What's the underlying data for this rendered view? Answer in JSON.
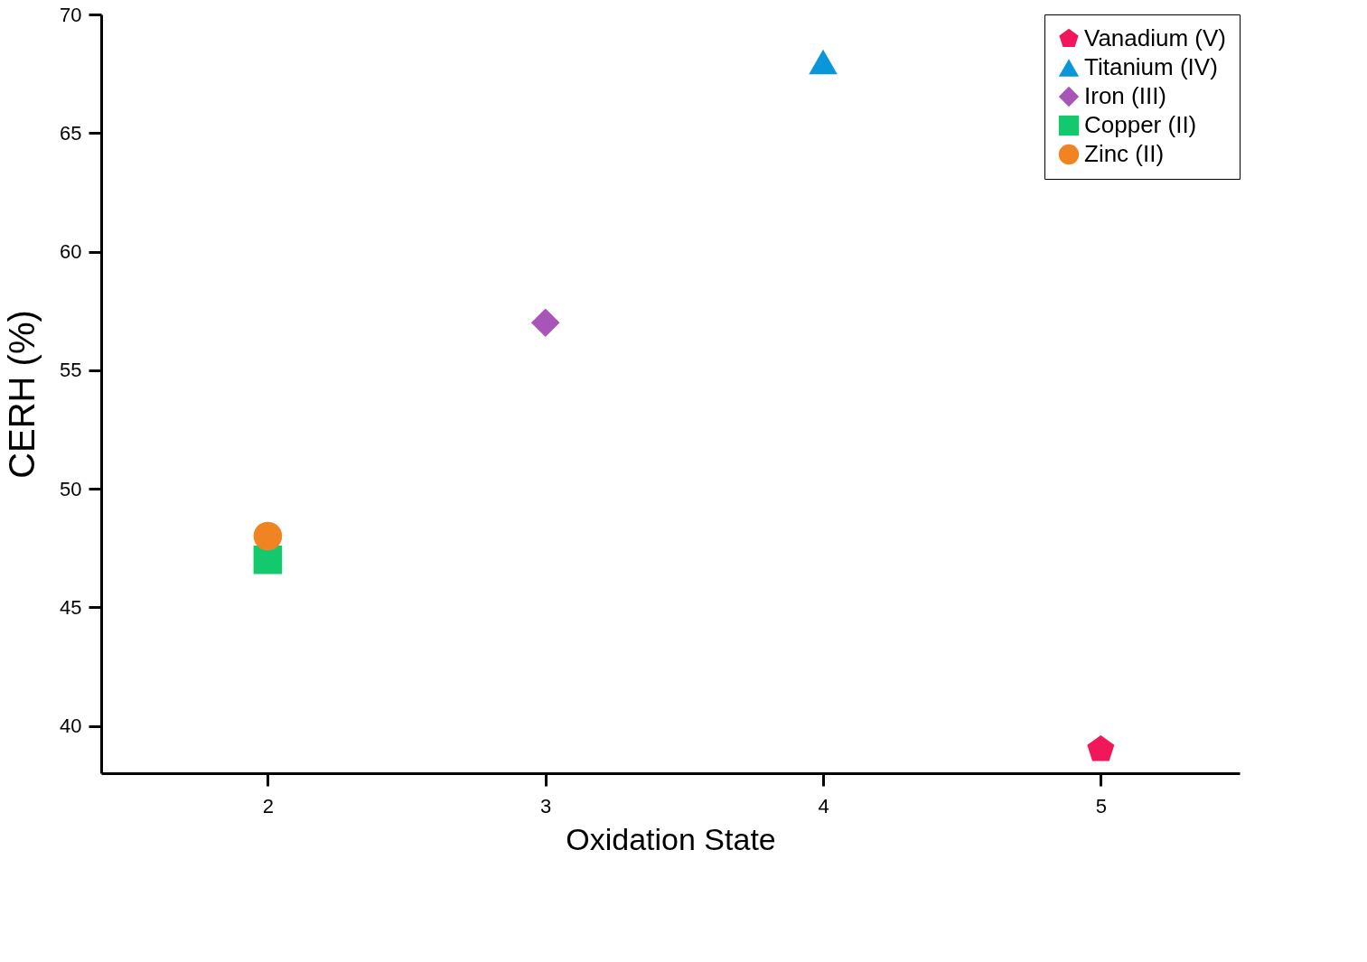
{
  "chart_data": {
    "type": "scatter",
    "xlabel": "Oxidation State",
    "ylabel": "CERH (%)",
    "xlim": [
      1.4,
      5.5
    ],
    "xticks": [
      2,
      3,
      4,
      5
    ],
    "ylim": [
      38,
      70
    ],
    "yticks": [
      40,
      45,
      50,
      55,
      60,
      65,
      70
    ],
    "grid": false,
    "legend": "top right",
    "series": [
      {
        "name": "Vanadium (V)",
        "color": "#f0185a",
        "x": [
          5
        ],
        "values": [
          39
        ]
      },
      {
        "name": "Titanium (IV)",
        "color": "#0a96d8",
        "marker": "triangle",
        "x": [
          4
        ],
        "values": [
          68
        ]
      },
      {
        "name": "Iron (III)",
        "color": "#a855b8",
        "marker": "diamond",
        "x": [
          3
        ],
        "values": [
          57
        ]
      },
      {
        "name": "Copper (II)",
        "color": "#14c86e",
        "marker": "square",
        "x": [
          2
        ],
        "values": [
          47
        ]
      },
      {
        "name": "Zinc (II)",
        "color": "#f08423",
        "marker": "circle",
        "x": [
          2
        ],
        "values": [
          48
        ]
      }
    ]
  }
}
